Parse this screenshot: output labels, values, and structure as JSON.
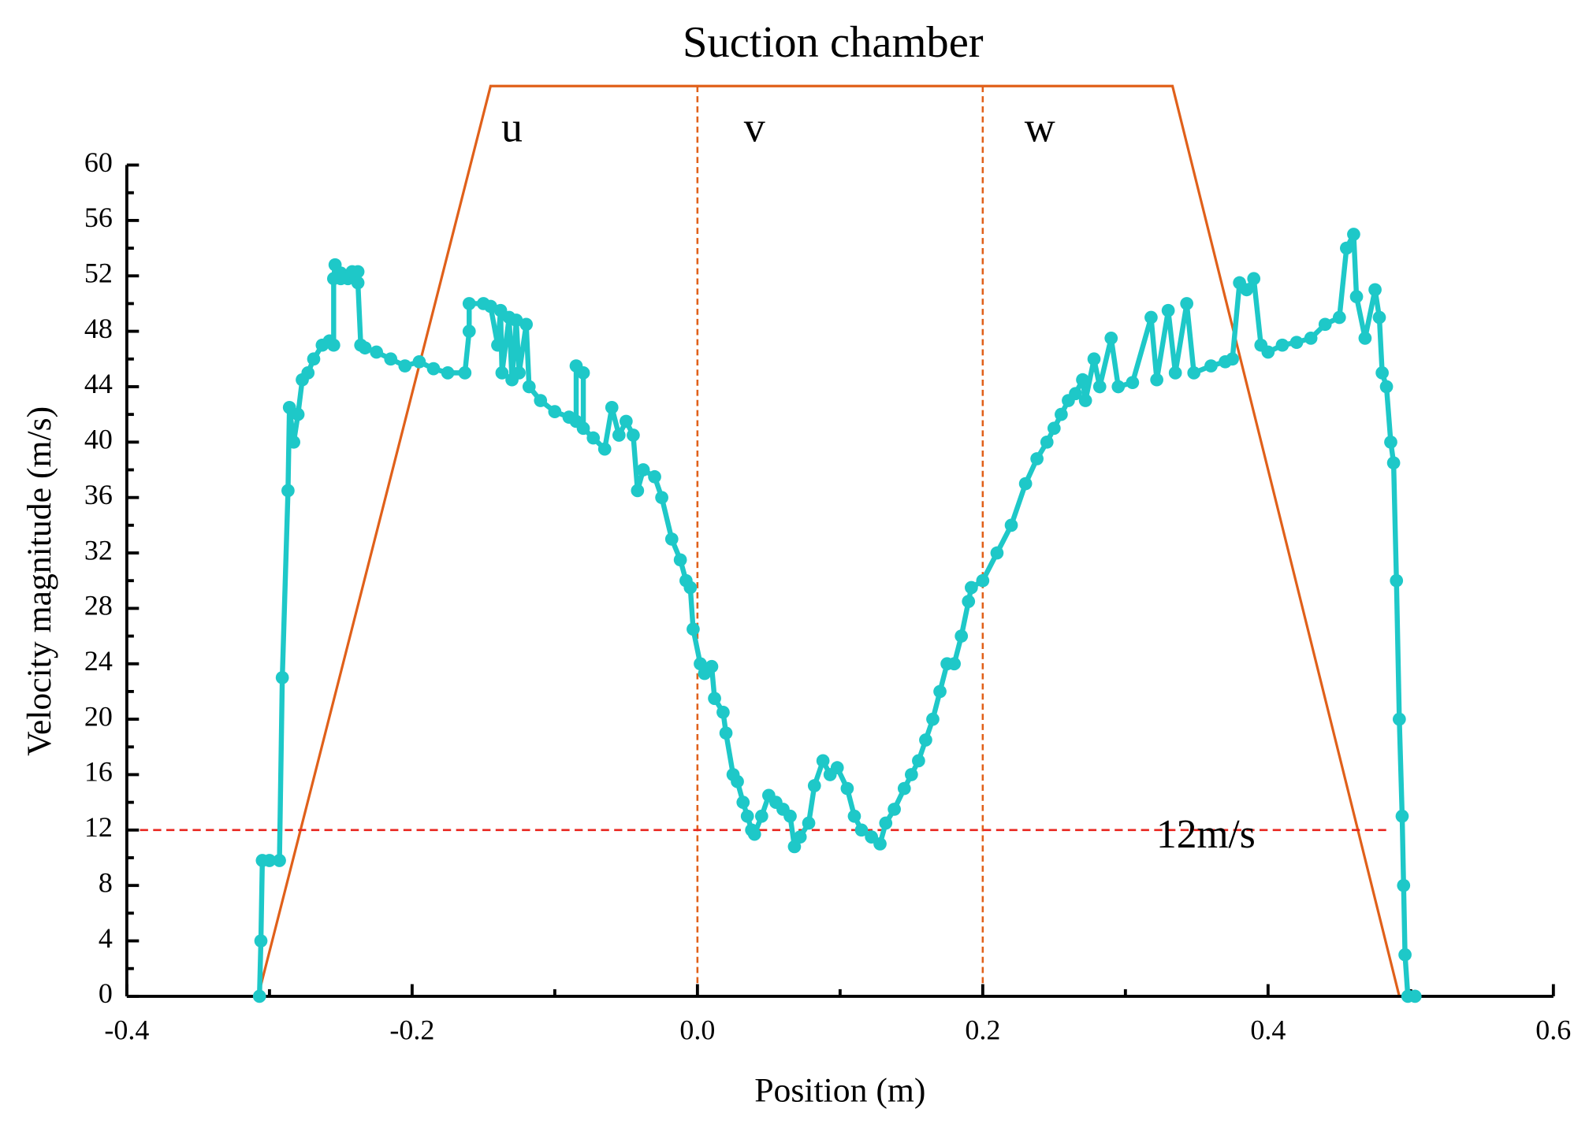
{
  "chart_data": {
    "type": "line",
    "title": "Suction chamber",
    "xlabel": "Position (m)",
    "ylabel": "Velocity magnitude (m/s)",
    "xlim": [
      -0.4,
      0.6
    ],
    "xticks": [
      -0.4,
      -0.2,
      {
        "value": 0,
        "label": "0.0"
      },
      0.2,
      0.4,
      0.6
    ],
    "xminorticks": [
      -0.3,
      -0.1,
      0.1,
      0.3,
      0.5
    ],
    "ylim": [
      0,
      60
    ],
    "yticks": [
      0,
      4,
      8,
      12,
      16,
      20,
      24,
      28,
      32,
      36,
      40,
      44,
      48,
      52,
      56,
      60
    ],
    "yminorticks": [
      2,
      6,
      10,
      14,
      18,
      22,
      26,
      30,
      34,
      38,
      42,
      46,
      50,
      54,
      58
    ],
    "reference_line": {
      "y": 12,
      "label": "12m/s",
      "color": "#e8251e"
    },
    "regions": {
      "labels": [
        "u",
        "v",
        "w"
      ],
      "label_x": [
        -0.13,
        0.04,
        0.24
      ],
      "dividers": [
        0,
        0.2
      ],
      "color": "#e0601a"
    },
    "chamber_outline": {
      "x": [
        -0.308,
        -0.145,
        0.333,
        0.492
      ],
      "y": [
        0,
        65.7,
        65.7,
        0
      ],
      "color": "#e0601a"
    },
    "series": [
      {
        "color": "#1ec8c8",
        "x": [
          -0.307,
          -0.306,
          -0.305,
          -0.3,
          -0.293,
          -0.291,
          -0.287,
          -0.286,
          -0.283,
          -0.28,
          -0.277,
          -0.273,
          -0.269,
          -0.263,
          -0.258,
          -0.255,
          -0.255,
          -0.254,
          -0.25,
          -0.25,
          -0.245,
          -0.242,
          -0.238,
          -0.238,
          -0.236,
          -0.233,
          -0.225,
          -0.215,
          -0.205,
          -0.195,
          -0.185,
          -0.175,
          -0.163,
          -0.16,
          -0.16,
          -0.15,
          -0.145,
          -0.14,
          -0.138,
          -0.137,
          -0.132,
          -0.13,
          -0.127,
          -0.125,
          -0.12,
          -0.118,
          -0.11,
          -0.1,
          -0.09,
          -0.085,
          -0.085,
          -0.08,
          -0.08,
          -0.073,
          -0.065,
          -0.06,
          -0.055,
          -0.05,
          -0.045,
          -0.042,
          -0.038,
          -0.03,
          -0.025,
          -0.018,
          -0.012,
          -0.008,
          -0.005,
          -0.003,
          0.002,
          0.005,
          0.01,
          0.012,
          0.018,
          0.02,
          0.025,
          0.028,
          0.032,
          0.035,
          0.038,
          0.04,
          0.045,
          0.05,
          0.055,
          0.06,
          0.065,
          0.068,
          0.072,
          0.078,
          0.082,
          0.088,
          0.093,
          0.098,
          0.105,
          0.11,
          0.115,
          0.122,
          0.128,
          0.132,
          0.138,
          0.145,
          0.15,
          0.155,
          0.16,
          0.165,
          0.17,
          0.175,
          0.18,
          0.185,
          0.19,
          0.192,
          0.2,
          0.21,
          0.22,
          0.23,
          0.238,
          0.245,
          0.25,
          0.255,
          0.26,
          0.265,
          0.27,
          0.272,
          0.278,
          0.282,
          0.29,
          0.295,
          0.305,
          0.318,
          0.322,
          0.33,
          0.335,
          0.343,
          0.348,
          0.36,
          0.37,
          0.375,
          0.38,
          0.385,
          0.39,
          0.395,
          0.4,
          0.41,
          0.42,
          0.43,
          0.44,
          0.45,
          0.455,
          0.46,
          0.462,
          0.468,
          0.475,
          0.478,
          0.48,
          0.483,
          0.486,
          0.488,
          0.49,
          0.492,
          0.494,
          0.495,
          0.496,
          0.498,
          0.503
        ],
        "values": [
          0,
          4,
          9.8,
          9.8,
          9.8,
          23,
          36.5,
          42.5,
          40,
          42,
          44.5,
          45,
          46,
          47,
          47.3,
          47,
          51.8,
          52.8,
          52.2,
          51.8,
          51.8,
          52.3,
          52.3,
          51.5,
          47,
          46.8,
          46.5,
          46,
          45.5,
          45.8,
          45.3,
          45,
          45,
          48,
          50,
          50,
          49.8,
          47,
          49.5,
          45,
          49,
          44.5,
          48.8,
          45,
          48.5,
          44,
          43,
          42.2,
          41.8,
          41.5,
          45.5,
          45,
          41,
          40.3,
          39.5,
          42.5,
          40.5,
          41.5,
          40.5,
          36.5,
          38,
          37.5,
          36,
          33,
          31.5,
          30,
          29.5,
          26.5,
          24,
          23.3,
          23.8,
          21.5,
          20.5,
          19,
          16,
          15.5,
          14,
          13,
          12,
          11.7,
          13,
          14.5,
          14,
          13.5,
          13,
          10.8,
          11.5,
          12.5,
          15.2,
          17,
          16,
          16.5,
          15,
          13,
          12,
          11.5,
          11,
          12.5,
          13.5,
          15,
          16,
          17,
          18.5,
          20,
          22,
          24,
          24,
          26,
          28.5,
          29.5,
          30,
          32,
          34,
          37,
          38.8,
          40,
          41,
          42,
          43,
          43.5,
          44.5,
          43,
          46,
          44,
          47.5,
          44,
          44.3,
          49,
          44.5,
          49.5,
          45,
          50,
          45,
          45.5,
          45.8,
          46,
          51.5,
          51,
          51.8,
          47,
          46.5,
          47,
          47.2,
          47.5,
          48.5,
          49,
          54,
          55,
          50.5,
          47.5,
          51,
          49,
          45,
          44,
          40,
          38.5,
          30,
          20,
          13,
          8,
          3,
          0,
          0
        ]
      }
    ]
  }
}
